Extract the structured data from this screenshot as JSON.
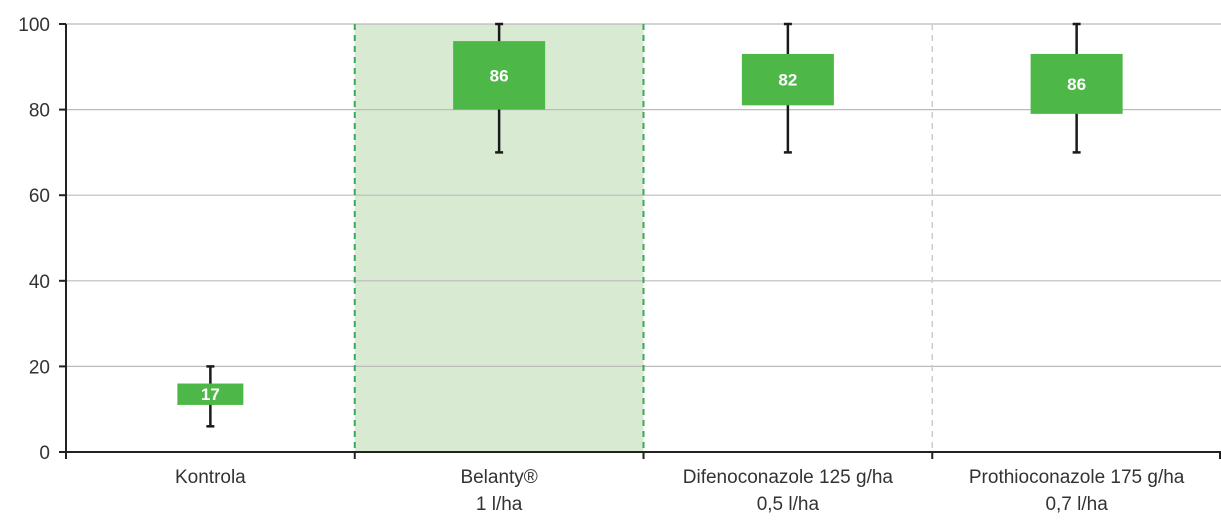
{
  "chart_data": {
    "type": "box",
    "ylim": [
      0,
      100
    ],
    "yticks": [
      0,
      20,
      40,
      60,
      80,
      100
    ],
    "grid": true,
    "highlight_category_index": 1,
    "categories": [
      {
        "label_lines": [
          "Kontrola"
        ]
      },
      {
        "label_lines": [
          "Belanty®",
          "1 l/ha"
        ]
      },
      {
        "label_lines": [
          "Difenoconazole 125 g/ha",
          "0,5 l/ha"
        ]
      },
      {
        "label_lines": [
          "Prothioconazole 175 g/ha",
          "0,7 l/ha"
        ]
      }
    ],
    "boxes": [
      {
        "label": "17",
        "whisker_low": 6,
        "q1": 11,
        "q3": 16,
        "whisker_high": 20
      },
      {
        "label": "86",
        "whisker_low": 70,
        "q1": 80,
        "q3": 96,
        "whisker_high": 100
      },
      {
        "label": "82",
        "whisker_low": 70,
        "q1": 81,
        "q3": 93,
        "whisker_high": 100
      },
      {
        "label": "86",
        "whisker_low": 70,
        "q1": 79,
        "q3": 93,
        "whisker_high": 100
      }
    ]
  },
  "colors": {
    "box": "#4db848",
    "highlight_band": "#d9ead3",
    "highlight_divider": "#3aa85a",
    "plain_divider": "#cccccc",
    "grid": "#bbbbbb",
    "axis": "#222222",
    "whisker": "#1a1a1a"
  }
}
